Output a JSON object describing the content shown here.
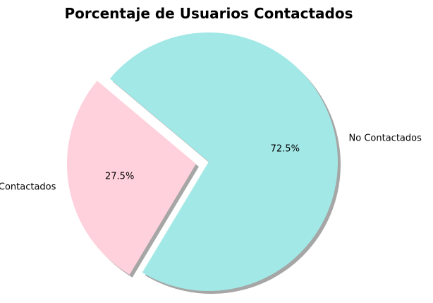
{
  "chart_data": {
    "type": "pie",
    "title": "Porcentaje de Usuarios Contactados",
    "slices": [
      {
        "label": "Contactados",
        "value": 27.5,
        "pct_label": "27.5%",
        "color": "#ffd1dc",
        "explode": 0.1
      },
      {
        "label": "No Contactados",
        "value": 72.5,
        "pct_label": "72.5%",
        "color": "#a2e8e6",
        "explode": 0.0
      }
    ],
    "start_angle_deg": 140,
    "shadow": true,
    "legend": "none"
  }
}
